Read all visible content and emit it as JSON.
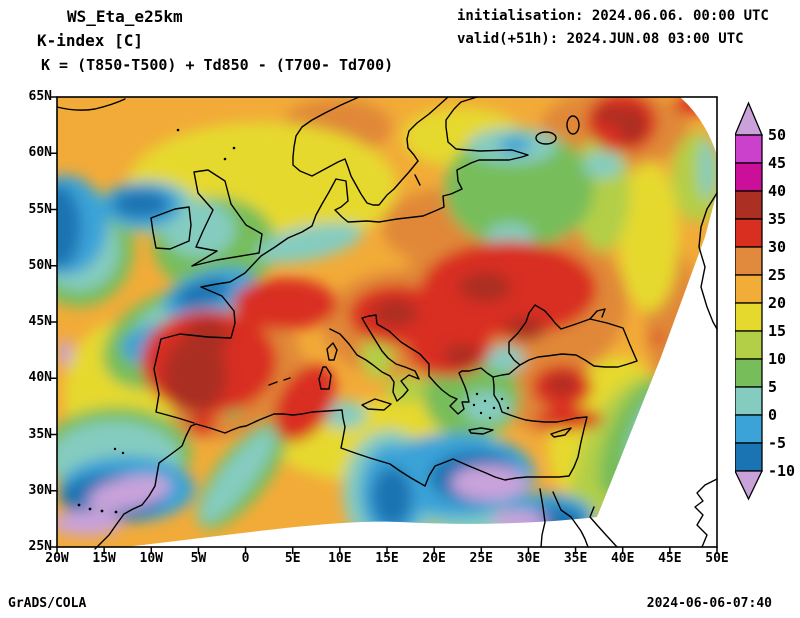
{
  "header": {
    "model": "WS_Eta_e25km",
    "variable": "K-index [C]",
    "formula": "K = (T850-T500) + Td850 - (T700- Td700)",
    "initialisation": "initialisation: 2024.06.06. 00:00 UTC",
    "valid": "valid(+51h): 2024.JUN.08 03:00 UTC"
  },
  "footer": {
    "credit": "GrADS/COLA",
    "created": "2024-06-06-07:40"
  },
  "axes": {
    "lon_ticks": [
      "20W",
      "15W",
      "10W",
      "5W",
      "0",
      "5E",
      "10E",
      "15E",
      "20E",
      "25E",
      "30E",
      "35E",
      "40E",
      "45E",
      "50E"
    ],
    "lat_ticks": [
      "65N",
      "60N",
      "55N",
      "50N",
      "45N",
      "40N",
      "35N",
      "30N",
      "25N"
    ]
  },
  "colorbar": {
    "labels": [
      "50",
      "45",
      "40",
      "35",
      "30",
      "25",
      "20",
      "15",
      "10",
      "5",
      "0",
      "-5",
      "-10"
    ],
    "colors_top_to_bottom": [
      "#cb41cb",
      "#cb0f9b",
      "#ab2f23",
      "#d92f20",
      "#e18a3e",
      "#f2ad39",
      "#e6d92e",
      "#b3cf47",
      "#77bd5a",
      "#85ccc0",
      "#3ba3d7",
      "#1a73b2"
    ],
    "out_of_range_color": "#c9a2da"
  },
  "chart_data": {
    "type": "heatmap",
    "title": "K-index [C]",
    "subtitle": "WS_Eta_e25km",
    "x": {
      "label": "longitude",
      "range_deg": [
        -20,
        50
      ],
      "tick_step_deg": 5,
      "tick_labels": [
        "20W",
        "15W",
        "10W",
        "5W",
        "0",
        "5E",
        "10E",
        "15E",
        "20E",
        "25E",
        "30E",
        "35E",
        "40E",
        "45E",
        "50E"
      ]
    },
    "y": {
      "label": "latitude",
      "range_deg": [
        25,
        65
      ],
      "tick_step_deg": 5,
      "tick_labels": [
        "65N",
        "60N",
        "55N",
        "50N",
        "45N",
        "40N",
        "35N",
        "30N",
        "25N"
      ]
    },
    "units": "C",
    "levels": [
      -10,
      -5,
      0,
      5,
      10,
      15,
      20,
      25,
      30,
      35,
      40,
      45,
      50
    ],
    "palette": [
      "#c9a2da",
      "#1a73b2",
      "#3ba3d7",
      "#85ccc0",
      "#77bd5a",
      "#b3cf47",
      "#e6d92e",
      "#f2ad39",
      "#e18a3e",
      "#d92f20",
      "#ab2f23",
      "#cb0f9b",
      "#cb41cb",
      "#c9a2da"
    ],
    "legend_position": "right",
    "grid": false,
    "notable_features": [
      {
        "region": "central and western Iberia",
        "approx_value_C": "35 to 40"
      },
      {
        "region": "southern France / Alps / northern Italy",
        "approx_value_C": "30 to 40"
      },
      {
        "region": "eastern Europe (Pannonia, Balkans, Ukraine)",
        "approx_value_C": "30 to 40"
      },
      {
        "region": "central Anatolia and southern Turkey coast",
        "approx_value_C": "30 to 35"
      },
      {
        "region": "far northeast (NW Russia) streak",
        "approx_value_C": "30 to 40"
      },
      {
        "region": "Scandinavia and central Europe background",
        "approx_value_C": "15 to 25"
      },
      {
        "region": "NE Atlantic band from W of Ireland to Biscay / Channel",
        "approx_value_C": "-10 to 5"
      },
      {
        "region": "Libya / central North Africa",
        "approx_value_C": "below -10"
      },
      {
        "region": "subtropical Atlantic near 30N 17W",
        "approx_value_C": "below -10"
      },
      {
        "region": "SE corner and bottom arc",
        "approx_value_C": "outside model domain (blank)"
      }
    ]
  }
}
